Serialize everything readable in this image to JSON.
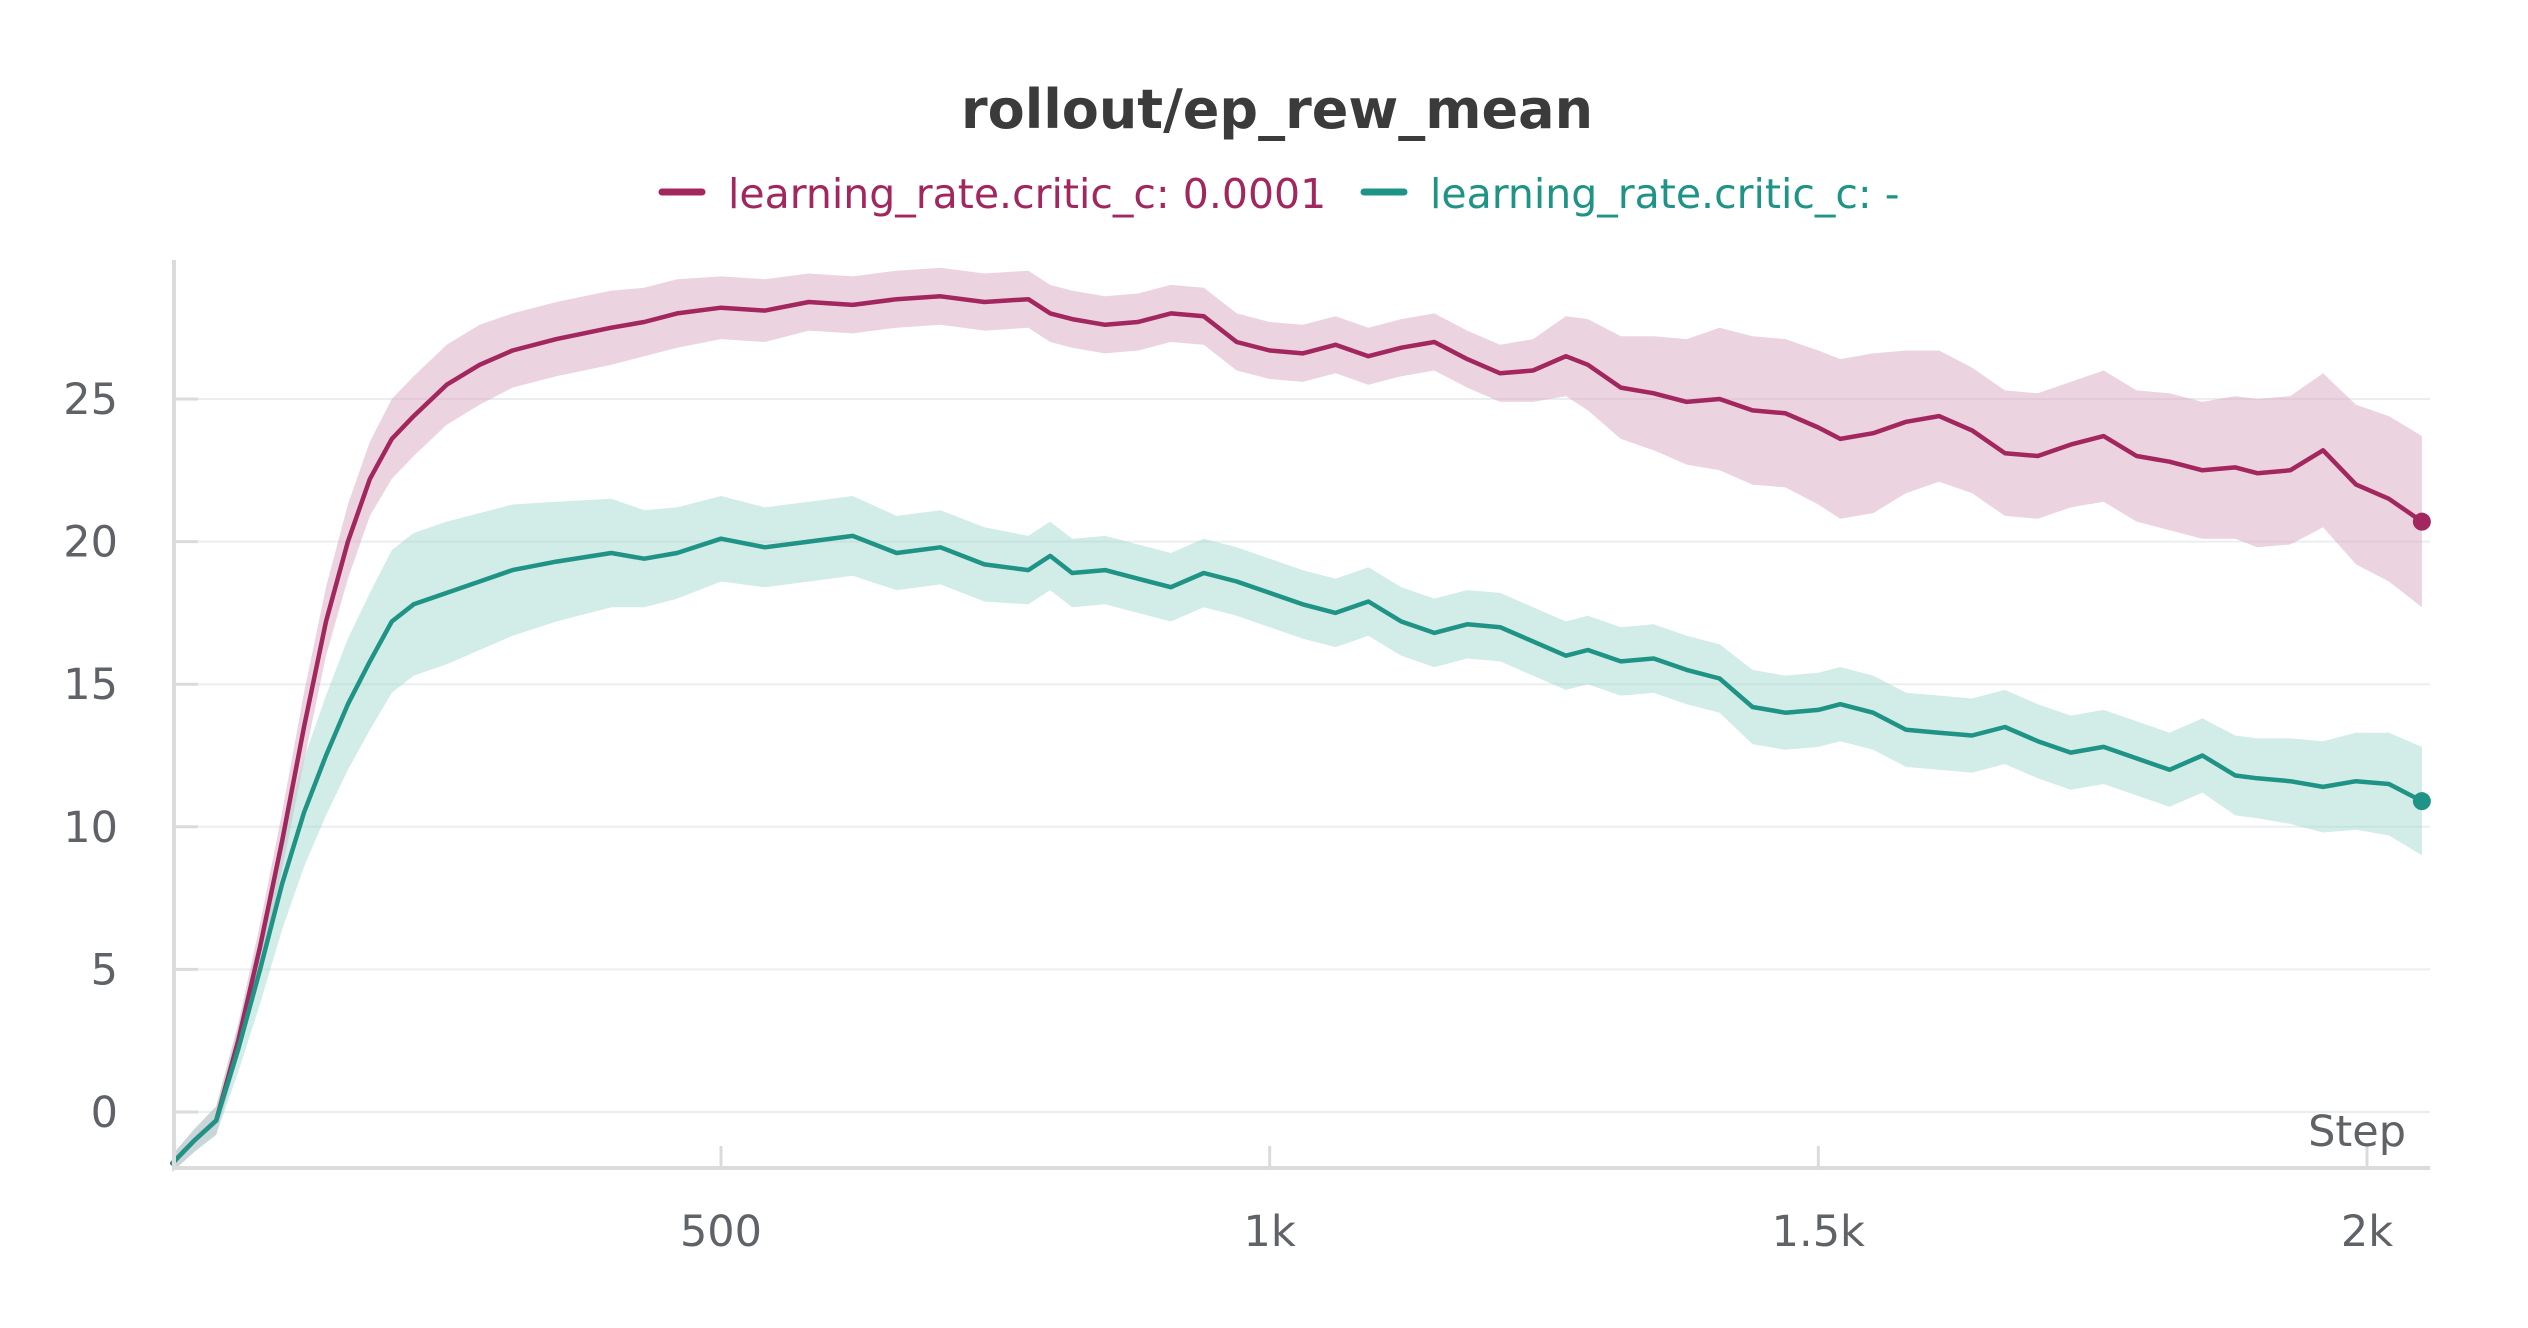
{
  "chart_data": {
    "type": "line",
    "title": "rollout/ep_rew_mean",
    "xlabel": "Step",
    "ylabel": "",
    "xlim": [
      0,
      2050
    ],
    "ylim": [
      -2,
      30
    ],
    "x_ticks": [
      {
        "value": 500,
        "label": "500"
      },
      {
        "value": 1000,
        "label": "1k"
      },
      {
        "value": 1500,
        "label": "1.5k"
      },
      {
        "value": 2000,
        "label": "2k"
      }
    ],
    "y_ticks": [
      {
        "value": 0,
        "label": "0"
      },
      {
        "value": 5,
        "label": "5"
      },
      {
        "value": 10,
        "label": "10"
      },
      {
        "value": 15,
        "label": "15"
      },
      {
        "value": 20,
        "label": "20"
      },
      {
        "value": 25,
        "label": "25"
      }
    ],
    "grid": "horizontal",
    "legend_position": "top-center",
    "series": [
      {
        "name": "learning_rate.critic_c: 0.0001",
        "color": "#a3275f",
        "band_color": "#d9a7c2",
        "x": [
          0,
          20,
          40,
          60,
          80,
          100,
          120,
          140,
          160,
          180,
          200,
          220,
          250,
          280,
          310,
          350,
          400,
          430,
          460,
          500,
          540,
          580,
          620,
          660,
          700,
          740,
          780,
          800,
          820,
          850,
          880,
          910,
          940,
          970,
          1000,
          1030,
          1060,
          1090,
          1120,
          1150,
          1180,
          1210,
          1240,
          1270,
          1290,
          1320,
          1350,
          1380,
          1410,
          1440,
          1470,
          1500,
          1520,
          1550,
          1580,
          1610,
          1640,
          1670,
          1700,
          1730,
          1760,
          1790,
          1820,
          1850,
          1880,
          1900,
          1930,
          1960,
          1990,
          2020,
          2050
        ],
        "y": [
          -1.8,
          -1.0,
          -0.3,
          2.5,
          5.8,
          9.5,
          13.5,
          17.2,
          20.0,
          22.2,
          23.6,
          24.4,
          25.5,
          26.2,
          26.7,
          27.1,
          27.5,
          27.7,
          28.0,
          28.2,
          28.1,
          28.4,
          28.3,
          28.5,
          28.6,
          28.4,
          28.5,
          28.0,
          27.8,
          27.6,
          27.7,
          28.0,
          27.9,
          27.0,
          26.7,
          26.6,
          26.9,
          26.5,
          26.8,
          27.0,
          26.4,
          25.9,
          26.0,
          26.5,
          26.2,
          25.4,
          25.2,
          24.9,
          25.0,
          24.6,
          24.5,
          24.0,
          23.6,
          23.8,
          24.2,
          24.4,
          23.9,
          23.1,
          23.0,
          23.4,
          23.7,
          23.0,
          22.8,
          22.5,
          22.6,
          22.4,
          22.5,
          23.2,
          22.0,
          21.5,
          20.7
        ],
        "band_width": [
          0.3,
          0.4,
          0.5,
          0.6,
          0.8,
          1.0,
          1.2,
          1.2,
          1.3,
          1.3,
          1.4,
          1.4,
          1.4,
          1.4,
          1.3,
          1.3,
          1.3,
          1.2,
          1.2,
          1.1,
          1.1,
          1.0,
          1.0,
          1.0,
          1.0,
          1.0,
          1.0,
          1.0,
          1.0,
          1.0,
          1.0,
          1.0,
          1.0,
          1.0,
          1.0,
          1.0,
          1.0,
          1.0,
          1.0,
          1.0,
          1.0,
          1.0,
          1.1,
          1.4,
          1.6,
          1.8,
          2.0,
          2.2,
          2.5,
          2.6,
          2.6,
          2.7,
          2.8,
          2.8,
          2.5,
          2.3,
          2.2,
          2.2,
          2.2,
          2.2,
          2.3,
          2.3,
          2.4,
          2.4,
          2.5,
          2.6,
          2.6,
          2.7,
          2.8,
          2.9,
          3.0
        ]
      },
      {
        "name": "learning_rate.critic_c: -",
        "color": "#1f9486",
        "band_color": "#a6d9cf",
        "x": [
          0,
          20,
          40,
          60,
          80,
          100,
          120,
          140,
          160,
          180,
          200,
          220,
          250,
          280,
          310,
          350,
          400,
          430,
          460,
          500,
          540,
          580,
          620,
          660,
          700,
          740,
          780,
          800,
          820,
          850,
          880,
          910,
          940,
          970,
          1000,
          1030,
          1060,
          1090,
          1120,
          1150,
          1180,
          1210,
          1240,
          1270,
          1290,
          1320,
          1350,
          1380,
          1410,
          1440,
          1470,
          1500,
          1520,
          1550,
          1580,
          1610,
          1640,
          1670,
          1700,
          1730,
          1760,
          1790,
          1820,
          1850,
          1880,
          1900,
          1930,
          1960,
          1990,
          2020,
          2050
        ],
        "y": [
          -1.8,
          -1.0,
          -0.3,
          2.2,
          5.0,
          8.0,
          10.5,
          12.5,
          14.3,
          15.8,
          17.2,
          17.8,
          18.2,
          18.6,
          19.0,
          19.3,
          19.6,
          19.4,
          19.6,
          20.1,
          19.8,
          20.0,
          20.2,
          19.6,
          19.8,
          19.2,
          19.0,
          19.5,
          18.9,
          19.0,
          18.7,
          18.4,
          18.9,
          18.6,
          18.2,
          17.8,
          17.5,
          17.9,
          17.2,
          16.8,
          17.1,
          17.0,
          16.5,
          16.0,
          16.2,
          15.8,
          15.9,
          15.5,
          15.2,
          14.2,
          14.0,
          14.1,
          14.3,
          14.0,
          13.4,
          13.3,
          13.2,
          13.5,
          13.0,
          12.6,
          12.8,
          12.4,
          12.0,
          12.5,
          11.8,
          11.7,
          11.6,
          11.4,
          11.6,
          11.5,
          10.9
        ],
        "band_width": [
          0.3,
          0.4,
          0.5,
          0.8,
          1.2,
          1.6,
          1.9,
          2.1,
          2.3,
          2.4,
          2.5,
          2.5,
          2.5,
          2.4,
          2.3,
          2.1,
          1.9,
          1.7,
          1.6,
          1.5,
          1.4,
          1.4,
          1.4,
          1.3,
          1.3,
          1.3,
          1.2,
          1.2,
          1.2,
          1.2,
          1.2,
          1.2,
          1.2,
          1.2,
          1.2,
          1.2,
          1.2,
          1.2,
          1.2,
          1.2,
          1.2,
          1.2,
          1.2,
          1.2,
          1.2,
          1.2,
          1.2,
          1.2,
          1.2,
          1.3,
          1.3,
          1.3,
          1.3,
          1.3,
          1.3,
          1.3,
          1.3,
          1.3,
          1.3,
          1.3,
          1.3,
          1.3,
          1.3,
          1.3,
          1.4,
          1.4,
          1.5,
          1.6,
          1.7,
          1.8,
          1.9
        ]
      }
    ]
  }
}
